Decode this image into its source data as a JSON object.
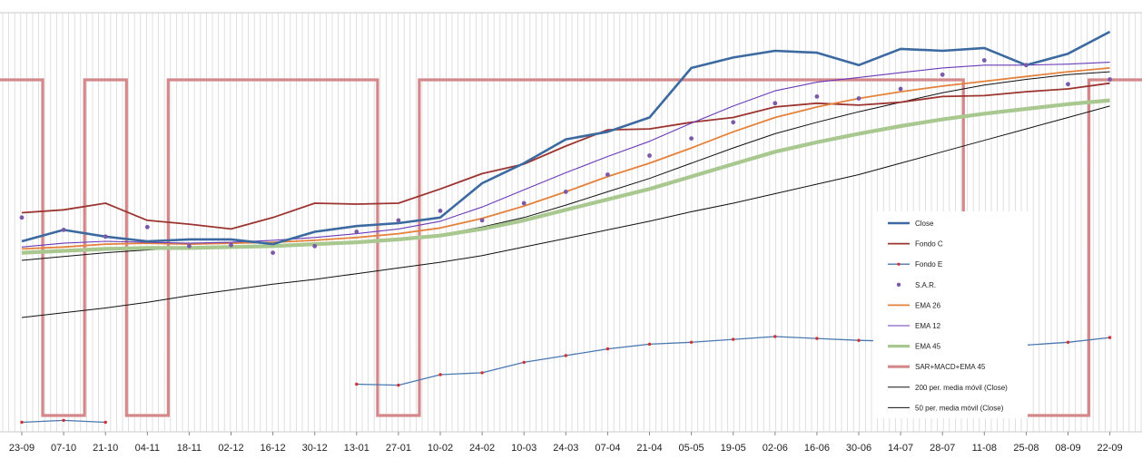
{
  "chart_data": {
    "type": "line",
    "grid": true,
    "legend_placement": "right",
    "categories": [
      "23-09",
      "07-10",
      "21-10",
      "04-11",
      "18-11",
      "02-12",
      "16-12",
      "30-12",
      "13-01",
      "27-01",
      "10-02",
      "24-02",
      "10-03",
      "24-03",
      "07-04",
      "21-04",
      "05-05",
      "19-05",
      "02-06",
      "16-06",
      "30-06",
      "14-07",
      "28-07",
      "11-08",
      "25-08",
      "08-09",
      "22-09"
    ],
    "series": [
      {
        "name": "Close",
        "color": "#3c6aa0",
        "width": 2.6,
        "style": "line",
        "values": [
          200,
          212,
          205,
          200,
          202,
          202,
          197,
          210,
          216,
          219,
          225,
          261,
          282,
          307,
          315,
          330,
          382,
          393,
          400,
          398,
          385,
          402,
          400,
          403,
          385,
          397,
          420
        ]
      },
      {
        "name": "Fondo C",
        "color": "#9c3430",
        "width": 1.8,
        "style": "line",
        "values": [
          230,
          233,
          240,
          222,
          218,
          213,
          225,
          240,
          239,
          240,
          255,
          271,
          281,
          300,
          317,
          318,
          325,
          330,
          341,
          345,
          343,
          346,
          352,
          353,
          357,
          360,
          366
        ]
      },
      {
        "name": "Fondo E",
        "color": "#4a78b0",
        "width": 1.3,
        "style": "line-marker",
        "values": [
          10,
          12,
          10,
          null,
          null,
          null,
          null,
          null,
          50,
          49,
          60,
          62,
          73,
          80,
          87,
          92,
          94,
          97,
          100,
          98,
          96,
          95,
          93,
          93,
          91,
          94,
          99
        ]
      },
      {
        "name": "S.A.R.",
        "color": "#7a5aa8",
        "width": 0,
        "style": "dots",
        "values": [
          225,
          212,
          205,
          215,
          195,
          196,
          188,
          195,
          210,
          222,
          232,
          222,
          240,
          252,
          270,
          290,
          308,
          325,
          345,
          352,
          350,
          360,
          375,
          390,
          385,
          365,
          370
        ]
      },
      {
        "name": "EMA 26",
        "color": "#e4823c",
        "width": 1.8,
        "style": "line",
        "values": [
          192,
          194,
          197,
          198,
          197,
          198,
          199,
          201,
          204,
          208,
          214,
          224,
          237,
          252,
          268,
          282,
          298,
          315,
          330,
          341,
          350,
          357,
          363,
          368,
          373,
          378,
          382
        ]
      },
      {
        "name": "EMA 12",
        "color": "#6a3ab8",
        "width": 1.1,
        "style": "line",
        "values": [
          194,
          198,
          200,
          199,
          198,
          199,
          201,
          204,
          208,
          213,
          221,
          236,
          254,
          272,
          289,
          305,
          324,
          342,
          358,
          367,
          372,
          377,
          382,
          385,
          385,
          386,
          388
        ]
      },
      {
        "name": "EMA 45",
        "color": "#a8c890",
        "width": 4.2,
        "style": "line",
        "values": [
          188,
          190,
          192,
          193,
          193,
          194,
          195,
          197,
          199,
          202,
          206,
          213,
          222,
          233,
          244,
          255,
          268,
          281,
          294,
          304,
          313,
          321,
          328,
          334,
          339,
          344,
          348
        ]
      },
      {
        "name": "SAR+MACD+EMA 45",
        "color": "#d4888a",
        "width": 3.2,
        "style": "step",
        "values": [
          1,
          0,
          1,
          0,
          1,
          1,
          1,
          1,
          1,
          0,
          1,
          1,
          1,
          1,
          1,
          1,
          1,
          1,
          1,
          1,
          1,
          1,
          1,
          0,
          0,
          0,
          1
        ]
      },
      {
        "name": "200 per. media móvil (Close)",
        "color": "#111111",
        "width": 1,
        "style": "line",
        "values": [
          120,
          125,
          130,
          136,
          143,
          149,
          155,
          160,
          166,
          172,
          178,
          185,
          194,
          203,
          212,
          221,
          231,
          240,
          250,
          260,
          270,
          282,
          294,
          306,
          318,
          330,
          342
        ]
      },
      {
        "name": "50 per. media móvil (Close)",
        "color": "#111111",
        "width": 1,
        "style": "line",
        "values": [
          180,
          184,
          188,
          191,
          193,
          195,
          196,
          197,
          199,
          203,
          207,
          215,
          225,
          238,
          252,
          266,
          282,
          298,
          313,
          325,
          336,
          346,
          356,
          364,
          370,
          375,
          378
        ]
      }
    ]
  }
}
